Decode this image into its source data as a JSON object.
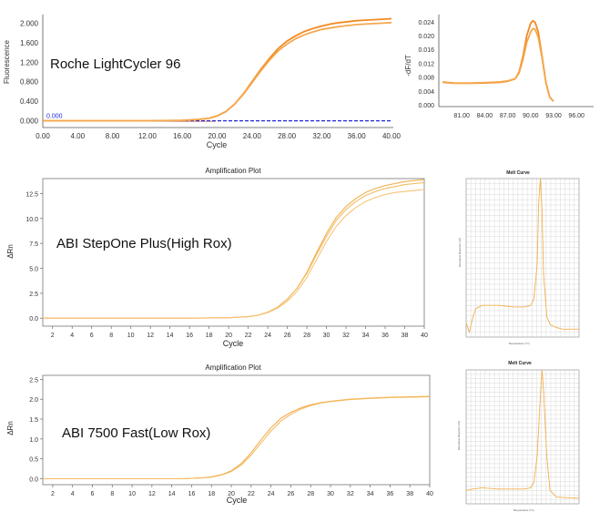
{
  "colors": {
    "orange": "#f28a22",
    "orange_light": "#f5a84d",
    "abi_orange": "#f0b04c",
    "threshold": "#1f2ad8",
    "grid": "#d9d9d9",
    "axis": "#555555"
  },
  "chart_data": [
    {
      "id": "roche_amp",
      "type": "line",
      "instrument_label": "Roche LightCycler 96",
      "title": "",
      "xlabel": "Cycle",
      "ylabel": "Fluorescence",
      "xlim": [
        0,
        40
      ],
      "ylim": [
        -0.1,
        2.1
      ],
      "xticks": [
        "0.00",
        "4.00",
        "8.00",
        "12.00",
        "16.00",
        "20.00",
        "24.00",
        "28.00",
        "32.00",
        "36.00",
        "40.00"
      ],
      "yticks": [
        "0.000",
        "0.400",
        "0.800",
        "1.200",
        "1.600",
        "2.000"
      ],
      "threshold": {
        "value": 0.0,
        "label": "0.000"
      },
      "x": [
        0,
        2,
        4,
        6,
        8,
        10,
        12,
        14,
        16,
        18,
        19,
        20,
        21,
        22,
        23,
        24,
        25,
        26,
        27,
        28,
        29,
        30,
        31,
        32,
        33,
        34,
        35,
        36,
        37,
        38,
        39,
        40
      ],
      "series": [
        {
          "values": [
            0,
            0,
            0,
            0,
            0,
            0,
            0,
            0.005,
            0.01,
            0.03,
            0.05,
            0.1,
            0.19,
            0.34,
            0.55,
            0.8,
            1.05,
            1.28,
            1.48,
            1.63,
            1.74,
            1.83,
            1.89,
            1.94,
            1.98,
            2.01,
            2.03,
            2.05,
            2.06,
            2.07,
            2.08,
            2.09
          ]
        },
        {
          "values": [
            0,
            0,
            0,
            0,
            0,
            0,
            0,
            0.005,
            0.01,
            0.03,
            0.05,
            0.1,
            0.19,
            0.34,
            0.54,
            0.78,
            1.02,
            1.24,
            1.43,
            1.57,
            1.68,
            1.76,
            1.82,
            1.87,
            1.9,
            1.93,
            1.95,
            1.97,
            1.98,
            1.99,
            2.0,
            2.01
          ]
        }
      ]
    },
    {
      "id": "roche_melt",
      "type": "line",
      "title": "",
      "xlabel": "",
      "ylabel": "-dF/dT",
      "xlim": [
        78,
        98
      ],
      "ylim": [
        0,
        0.025
      ],
      "xticks": [
        "81.00",
        "84.00",
        "87.00",
        "90.00",
        "93.00",
        "96.00"
      ],
      "yticks": [
        "0.000",
        "0.004",
        "0.008",
        "0.012",
        "0.016",
        "0.020",
        "0.024"
      ],
      "x": [
        78.5,
        80,
        82,
        84,
        86,
        87,
        88,
        88.5,
        89,
        89.5,
        90,
        90.3,
        90.6,
        91,
        91.5,
        92,
        92.5,
        93
      ],
      "series": [
        {
          "values": [
            0.0065,
            0.0062,
            0.0062,
            0.0063,
            0.0065,
            0.0068,
            0.0075,
            0.0095,
            0.014,
            0.02,
            0.0235,
            0.0243,
            0.0238,
            0.021,
            0.014,
            0.0065,
            0.0022,
            0.001
          ]
        },
        {
          "values": [
            0.0066,
            0.0063,
            0.0063,
            0.0064,
            0.0066,
            0.0069,
            0.0075,
            0.0092,
            0.013,
            0.018,
            0.021,
            0.022,
            0.0218,
            0.0195,
            0.0135,
            0.0063,
            0.0022,
            0.001
          ]
        }
      ]
    },
    {
      "id": "abi_stepone_amp",
      "type": "line",
      "instrument_label": "ABI StepOne  Plus(High Rox)",
      "title": "Amplification Plot",
      "xlabel": "Cycle",
      "ylabel": "ΔRn",
      "xlim": [
        1,
        40
      ],
      "ylim": [
        -0.8,
        14
      ],
      "xticks": [
        "2",
        "4",
        "6",
        "8",
        "10",
        "12",
        "14",
        "16",
        "18",
        "20",
        "22",
        "24",
        "26",
        "28",
        "30",
        "32",
        "34",
        "36",
        "38",
        "40"
      ],
      "yticks": [
        "0.0",
        "2.5",
        "5.0",
        "7.5",
        "10.0",
        "12.5"
      ],
      "x": [
        1,
        4,
        8,
        12,
        16,
        20,
        22,
        23,
        24,
        25,
        26,
        27,
        28,
        29,
        30,
        31,
        32,
        33,
        34,
        35,
        36,
        37,
        38,
        39,
        40
      ],
      "series": [
        {
          "values": [
            0,
            0,
            0,
            0,
            0,
            0.05,
            0.15,
            0.3,
            0.6,
            1.1,
            1.9,
            3.0,
            4.6,
            6.6,
            8.5,
            10.1,
            11.2,
            12.0,
            12.6,
            13.0,
            13.3,
            13.5,
            13.7,
            13.8,
            13.9
          ]
        },
        {
          "values": [
            0,
            0,
            0,
            0,
            0,
            0.05,
            0.15,
            0.3,
            0.6,
            1.1,
            1.9,
            3.0,
            4.5,
            6.4,
            8.2,
            9.8,
            10.9,
            11.7,
            12.3,
            12.7,
            13.0,
            13.2,
            13.4,
            13.5,
            13.6
          ]
        },
        {
          "values": [
            0,
            0,
            0,
            0,
            0,
            0.05,
            0.14,
            0.28,
            0.55,
            1.0,
            1.7,
            2.7,
            4.1,
            5.9,
            7.7,
            9.2,
            10.3,
            11.1,
            11.7,
            12.1,
            12.4,
            12.6,
            12.7,
            12.8,
            12.9
          ]
        }
      ]
    },
    {
      "id": "abi_stepone_melt",
      "type": "line",
      "title": "Melt Curve",
      "xlabel": "Temperature (°C)",
      "ylabel": "Derivative Reporter (-R')",
      "xlim": [
        60,
        95
      ],
      "ylim": [
        0,
        1
      ],
      "x": [
        60,
        61,
        62,
        63,
        65,
        70,
        75,
        78,
        80,
        81,
        82,
        82.5,
        83,
        83.5,
        84,
        85,
        86,
        88,
        90,
        95
      ],
      "series": [
        {
          "values": [
            0.09,
            0.03,
            0.12,
            0.18,
            0.2,
            0.2,
            0.19,
            0.19,
            0.2,
            0.24,
            0.45,
            0.85,
            1.0,
            0.8,
            0.4,
            0.13,
            0.08,
            0.06,
            0.05,
            0.05
          ]
        }
      ]
    },
    {
      "id": "abi_7500_amp",
      "type": "line",
      "instrument_label": "ABI 7500 Fast(Low Rox)",
      "title": "Amplification Plot",
      "xlabel": "Cycle",
      "ylabel": "ΔRn",
      "xlim": [
        1,
        40
      ],
      "ylim": [
        -0.15,
        2.6
      ],
      "xticks": [
        "2",
        "4",
        "6",
        "8",
        "10",
        "12",
        "14",
        "16",
        "18",
        "20",
        "22",
        "24",
        "26",
        "28",
        "30",
        "32",
        "34",
        "36",
        "38",
        "40"
      ],
      "yticks": [
        "0.0",
        "0.5",
        "1.0",
        "1.5",
        "2.0",
        "2.5"
      ],
      "x": [
        1,
        4,
        8,
        12,
        15,
        17,
        18,
        19,
        20,
        21,
        22,
        23,
        24,
        25,
        26,
        27,
        28,
        29,
        30,
        32,
        34,
        36,
        38,
        40
      ],
      "series": [
        {
          "values": [
            0,
            0,
            0,
            0,
            0,
            0.02,
            0.05,
            0.1,
            0.2,
            0.38,
            0.65,
            0.98,
            1.28,
            1.52,
            1.67,
            1.78,
            1.86,
            1.91,
            1.95,
            2.0,
            2.03,
            2.05,
            2.06,
            2.07
          ]
        },
        {
          "values": [
            0,
            0,
            0,
            0,
            0,
            0.02,
            0.04,
            0.09,
            0.18,
            0.34,
            0.59,
            0.9,
            1.2,
            1.45,
            1.62,
            1.75,
            1.84,
            1.9,
            1.94,
            1.99,
            2.02,
            2.04,
            2.05,
            2.06
          ]
        }
      ]
    },
    {
      "id": "abi_7500_melt",
      "type": "line",
      "title": "Melt Curve",
      "xlabel": "Temperature (°C)",
      "ylabel": "Derivative Reporter (-R')",
      "xlim": [
        60,
        95
      ],
      "ylim": [
        0,
        1
      ],
      "x": [
        60,
        62,
        65,
        70,
        75,
        78,
        80,
        81,
        82,
        83,
        83.5,
        84,
        85,
        86,
        88,
        95
      ],
      "series": [
        {
          "values": [
            0.1,
            0.11,
            0.12,
            0.11,
            0.11,
            0.11,
            0.12,
            0.16,
            0.35,
            0.8,
            1.0,
            0.85,
            0.35,
            0.1,
            0.05,
            0.04
          ]
        }
      ]
    }
  ]
}
